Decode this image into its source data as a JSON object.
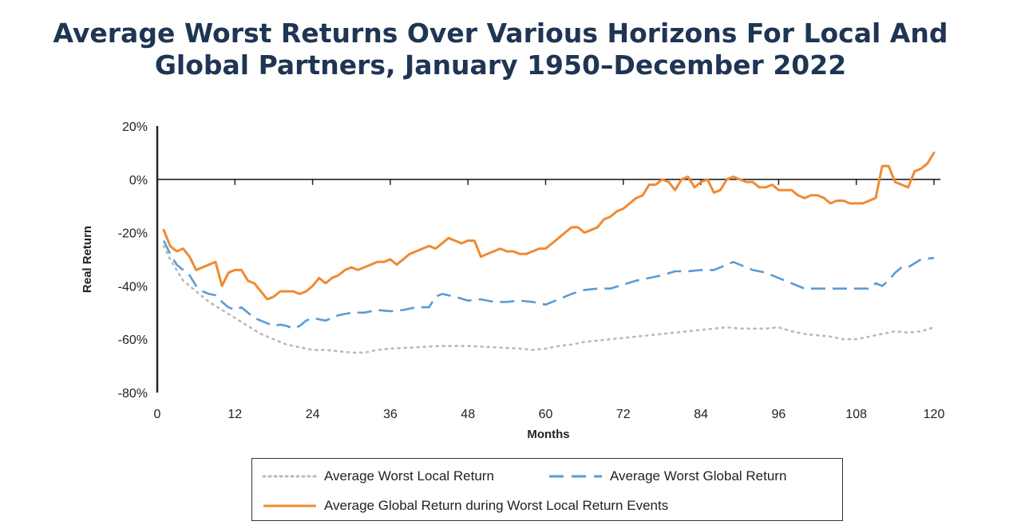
{
  "title_line1": "Average Worst Returns Over Various Horizons For Local And",
  "title_line2": "Global Partners, January 1950–December 2022",
  "chart_data": {
    "type": "line",
    "xlabel": "Months",
    "ylabel": "Real Return",
    "xlim": [
      0,
      121
    ],
    "ylim": [
      -80,
      20
    ],
    "x_ticks": [
      0,
      12,
      24,
      36,
      48,
      60,
      72,
      84,
      96,
      108,
      120
    ],
    "y_ticks": [
      20,
      0,
      -20,
      -40,
      -60,
      -80
    ],
    "y_tick_labels": [
      "20%",
      "0%",
      "-20%",
      "-40%",
      "-60%",
      "-80%"
    ],
    "grid": false,
    "legend_position": "bottom",
    "series": [
      {
        "name": "Average Worst Local Return",
        "style": "dotted",
        "color": "#b9b9b9",
        "points": [
          [
            1,
            -25
          ],
          [
            2,
            -30
          ],
          [
            3,
            -34
          ],
          [
            4,
            -38
          ],
          [
            6,
            -42
          ],
          [
            8,
            -46
          ],
          [
            10,
            -49
          ],
          [
            12,
            -52
          ],
          [
            14,
            -55
          ],
          [
            16,
            -58
          ],
          [
            18,
            -60
          ],
          [
            20,
            -62
          ],
          [
            22,
            -63
          ],
          [
            24,
            -64
          ],
          [
            26,
            -64
          ],
          [
            28,
            -64.5
          ],
          [
            30,
            -65
          ],
          [
            32,
            -65
          ],
          [
            34,
            -64
          ],
          [
            36,
            -63.5
          ],
          [
            40,
            -63
          ],
          [
            44,
            -62.5
          ],
          [
            48,
            -62.5
          ],
          [
            52,
            -63
          ],
          [
            56,
            -63.5
          ],
          [
            58,
            -64
          ],
          [
            60,
            -63.5
          ],
          [
            62,
            -62.5
          ],
          [
            64,
            -62
          ],
          [
            66,
            -61
          ],
          [
            70,
            -60
          ],
          [
            74,
            -59
          ],
          [
            78,
            -58
          ],
          [
            82,
            -57
          ],
          [
            86,
            -56
          ],
          [
            88,
            -55.5
          ],
          [
            90,
            -56
          ],
          [
            94,
            -56
          ],
          [
            96,
            -55.5
          ],
          [
            98,
            -57
          ],
          [
            100,
            -58
          ],
          [
            102,
            -58.5
          ],
          [
            104,
            -59
          ],
          [
            106,
            -60
          ],
          [
            108,
            -60
          ],
          [
            110,
            -59
          ],
          [
            112,
            -58
          ],
          [
            114,
            -57
          ],
          [
            116,
            -57.5
          ],
          [
            118,
            -57
          ],
          [
            120,
            -55.5
          ]
        ]
      },
      {
        "name": "Average Worst Global Return",
        "style": "dashed",
        "color": "#5b9bd5",
        "points": [
          [
            1,
            -23
          ],
          [
            2,
            -28
          ],
          [
            3,
            -32
          ],
          [
            4,
            -34
          ],
          [
            5,
            -36
          ],
          [
            6,
            -40
          ],
          [
            7,
            -42
          ],
          [
            8,
            -43
          ],
          [
            9,
            -43.5
          ],
          [
            10,
            -46
          ],
          [
            11,
            -48
          ],
          [
            12,
            -49
          ],
          [
            13,
            -48
          ],
          [
            14,
            -50
          ],
          [
            15,
            -52
          ],
          [
            16,
            -53
          ],
          [
            17,
            -54
          ],
          [
            18,
            -55
          ],
          [
            19,
            -54.5
          ],
          [
            20,
            -55
          ],
          [
            21,
            -56
          ],
          [
            22,
            -55
          ],
          [
            23,
            -53
          ],
          [
            24,
            -52
          ],
          [
            26,
            -53
          ],
          [
            28,
            -51
          ],
          [
            30,
            -50
          ],
          [
            32,
            -50
          ],
          [
            34,
            -49
          ],
          [
            36,
            -49.5
          ],
          [
            38,
            -49
          ],
          [
            40,
            -48
          ],
          [
            42,
            -48
          ],
          [
            43,
            -44
          ],
          [
            44,
            -43
          ],
          [
            46,
            -44
          ],
          [
            48,
            -45.5
          ],
          [
            50,
            -45
          ],
          [
            52,
            -46
          ],
          [
            54,
            -46
          ],
          [
            56,
            -45.5
          ],
          [
            58,
            -46
          ],
          [
            60,
            -47
          ],
          [
            62,
            -45
          ],
          [
            64,
            -43
          ],
          [
            66,
            -41.5
          ],
          [
            68,
            -41
          ],
          [
            70,
            -41
          ],
          [
            72,
            -39.5
          ],
          [
            74,
            -38
          ],
          [
            76,
            -37
          ],
          [
            78,
            -36
          ],
          [
            80,
            -34.5
          ],
          [
            82,
            -34.5
          ],
          [
            84,
            -34
          ],
          [
            86,
            -34
          ],
          [
            88,
            -32
          ],
          [
            89,
            -31
          ],
          [
            90,
            -32
          ],
          [
            92,
            -34
          ],
          [
            94,
            -35
          ],
          [
            96,
            -37
          ],
          [
            98,
            -39
          ],
          [
            100,
            -41
          ],
          [
            102,
            -41
          ],
          [
            104,
            -41
          ],
          [
            106,
            -41
          ],
          [
            108,
            -41
          ],
          [
            110,
            -41
          ],
          [
            111,
            -39
          ],
          [
            112,
            -40
          ],
          [
            113,
            -38
          ],
          [
            114,
            -35
          ],
          [
            115,
            -33
          ],
          [
            116,
            -33
          ],
          [
            118,
            -30
          ],
          [
            120,
            -29.5
          ]
        ]
      },
      {
        "name": "Average Global Return during Worst Local Return Events",
        "style": "solid",
        "color": "#f08a32",
        "points": [
          [
            1,
            -19
          ],
          [
            2,
            -25
          ],
          [
            3,
            -27
          ],
          [
            4,
            -26
          ],
          [
            5,
            -29
          ],
          [
            6,
            -34
          ],
          [
            7,
            -33
          ],
          [
            8,
            -32
          ],
          [
            9,
            -31
          ],
          [
            10,
            -40
          ],
          [
            11,
            -35
          ],
          [
            12,
            -34
          ],
          [
            13,
            -34
          ],
          [
            14,
            -38
          ],
          [
            15,
            -39
          ],
          [
            16,
            -42
          ],
          [
            17,
            -45
          ],
          [
            18,
            -44
          ],
          [
            19,
            -42
          ],
          [
            20,
            -42
          ],
          [
            21,
            -42
          ],
          [
            22,
            -43
          ],
          [
            23,
            -42
          ],
          [
            24,
            -40
          ],
          [
            25,
            -37
          ],
          [
            26,
            -39
          ],
          [
            27,
            -37
          ],
          [
            28,
            -36
          ],
          [
            29,
            -34
          ],
          [
            30,
            -33
          ],
          [
            31,
            -34
          ],
          [
            32,
            -33
          ],
          [
            33,
            -32
          ],
          [
            34,
            -31
          ],
          [
            35,
            -31
          ],
          [
            36,
            -30
          ],
          [
            37,
            -32
          ],
          [
            38,
            -30
          ],
          [
            39,
            -28
          ],
          [
            40,
            -27
          ],
          [
            41,
            -26
          ],
          [
            42,
            -25
          ],
          [
            43,
            -26
          ],
          [
            44,
            -24
          ],
          [
            45,
            -22
          ],
          [
            46,
            -23
          ],
          [
            47,
            -24
          ],
          [
            48,
            -23
          ],
          [
            49,
            -23
          ],
          [
            50,
            -29
          ],
          [
            51,
            -28
          ],
          [
            52,
            -27
          ],
          [
            53,
            -26
          ],
          [
            54,
            -27
          ],
          [
            55,
            -27
          ],
          [
            56,
            -28
          ],
          [
            57,
            -28
          ],
          [
            58,
            -27
          ],
          [
            59,
            -26
          ],
          [
            60,
            -26
          ],
          [
            61,
            -24
          ],
          [
            62,
            -22
          ],
          [
            63,
            -20
          ],
          [
            64,
            -18
          ],
          [
            65,
            -18
          ],
          [
            66,
            -20
          ],
          [
            67,
            -19
          ],
          [
            68,
            -18
          ],
          [
            69,
            -15
          ],
          [
            70,
            -14
          ],
          [
            71,
            -12
          ],
          [
            72,
            -11
          ],
          [
            73,
            -9
          ],
          [
            74,
            -7
          ],
          [
            75,
            -6
          ],
          [
            76,
            -2
          ],
          [
            77,
            -2
          ],
          [
            78,
            0
          ],
          [
            79,
            -1
          ],
          [
            80,
            -4
          ],
          [
            81,
            0
          ],
          [
            82,
            1
          ],
          [
            83,
            -3
          ],
          [
            84,
            -1
          ],
          [
            85,
            0
          ],
          [
            86,
            -5
          ],
          [
            87,
            -4
          ],
          [
            88,
            0
          ],
          [
            89,
            1
          ],
          [
            90,
            0
          ],
          [
            91,
            -1
          ],
          [
            92,
            -1
          ],
          [
            93,
            -3
          ],
          [
            94,
            -3
          ],
          [
            95,
            -2
          ],
          [
            96,
            -4
          ],
          [
            97,
            -4
          ],
          [
            98,
            -4
          ],
          [
            99,
            -6
          ],
          [
            100,
            -7
          ],
          [
            101,
            -6
          ],
          [
            102,
            -6
          ],
          [
            103,
            -7
          ],
          [
            104,
            -9
          ],
          [
            105,
            -8
          ],
          [
            106,
            -8
          ],
          [
            107,
            -9
          ],
          [
            108,
            -9
          ],
          [
            109,
            -9
          ],
          [
            110,
            -8
          ],
          [
            111,
            -7
          ],
          [
            112,
            5
          ],
          [
            113,
            5
          ],
          [
            114,
            -1
          ],
          [
            115,
            -2
          ],
          [
            116,
            -3
          ],
          [
            117,
            3
          ],
          [
            118,
            4
          ],
          [
            119,
            6
          ],
          [
            120,
            10
          ]
        ]
      }
    ]
  }
}
